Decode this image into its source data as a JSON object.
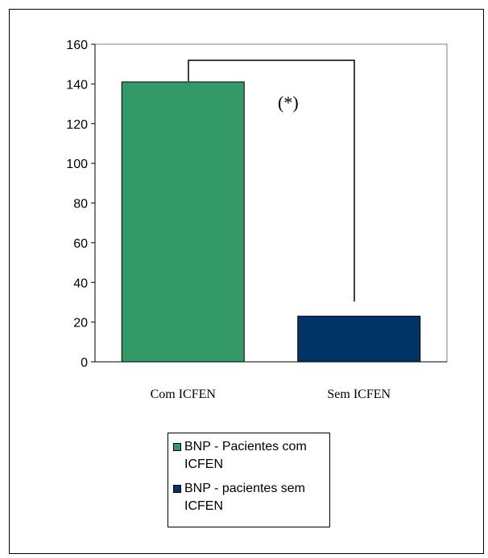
{
  "chart_data": {
    "type": "bar",
    "categories": [
      "Com ICFEN",
      "Sem ICFEN"
    ],
    "series": [
      {
        "name": "BNP - Pacientes com ICFEN",
        "values": [
          141,
          null
        ],
        "color": "#339966"
      },
      {
        "name": "BNP - pacientes sem ICFEN",
        "values": [
          null,
          23
        ],
        "color": "#003366"
      }
    ],
    "values": [
      141,
      23
    ],
    "colors": [
      "#339966",
      "#003366"
    ],
    "ylim": [
      0,
      160
    ],
    "yticks": [
      "0",
      "20",
      "40",
      "60",
      "80",
      "100",
      "120",
      "140",
      "160"
    ],
    "title": "",
    "xlabel": "",
    "ylabel": "",
    "annotation": "(*)",
    "grid": false,
    "legend_position": "bottom-center"
  },
  "legend": {
    "items": [
      {
        "label": "BNP - Pacientes com ICFEN",
        "color": "#339966"
      },
      {
        "label": "BNP - pacientes sem ICFEN",
        "color": "#003366"
      }
    ]
  }
}
